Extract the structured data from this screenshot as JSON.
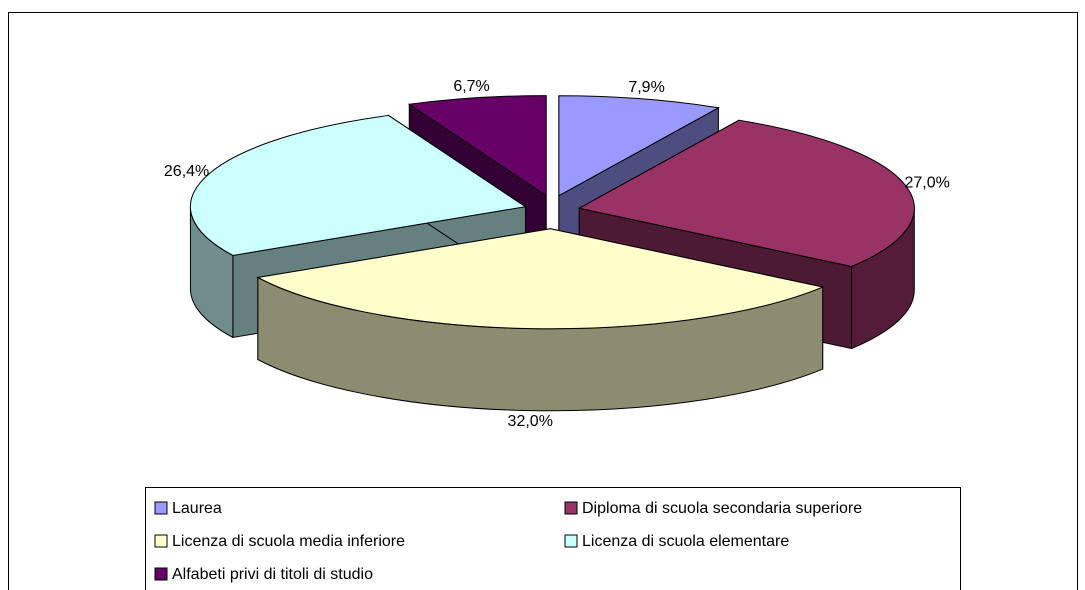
{
  "chart_data": {
    "type": "pie3d",
    "categories": [
      "Laurea",
      "Diploma di scuola secondaria superiore",
      "Licenza di scuola media inferiore",
      "Licenza di scuola elementare",
      "Alfabeti privi di titoli di studio"
    ],
    "values": [
      7.9,
      27.0,
      32.0,
      26.4,
      6.7
    ],
    "value_labels": [
      "7,9%",
      "27,0%",
      "32,0%",
      "26,4%",
      "6,7%"
    ],
    "colors": [
      "#9999ff",
      "#993366",
      "#ffffcc",
      "#ccffff",
      "#660066"
    ],
    "legend": "bottom"
  }
}
